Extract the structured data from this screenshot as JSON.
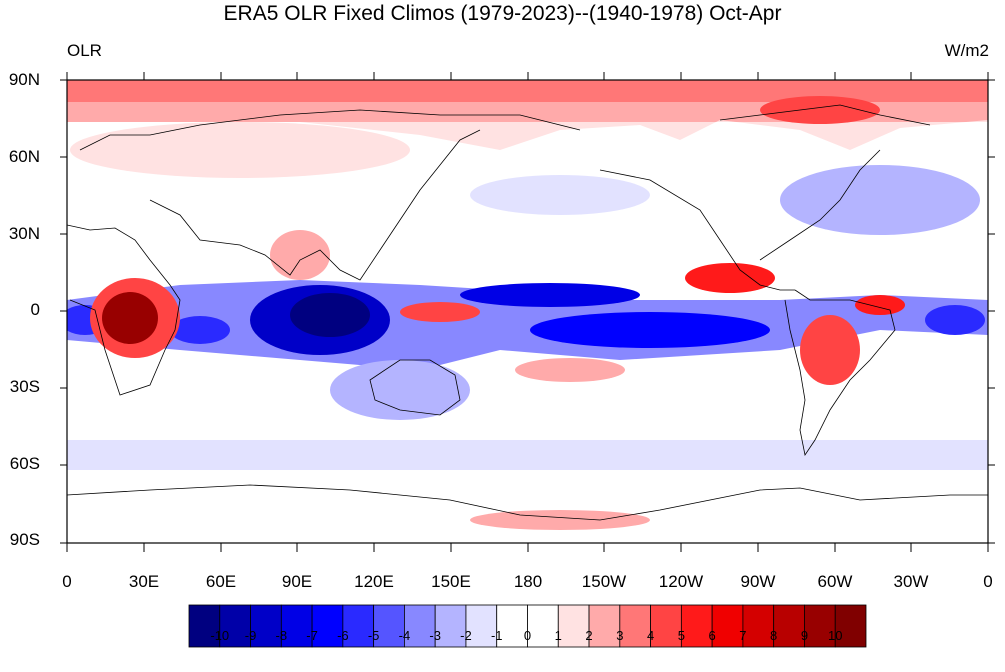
{
  "title": "ERA5 OLR Fixed Climos (1979-2023)--(1940-1978) Oct-Apr",
  "left_label": "OLR",
  "right_label": "W/m2",
  "lat_ticks": [
    "90N",
    "60N",
    "30N",
    "0",
    "30S",
    "60S",
    "90S"
  ],
  "lon_ticks": [
    "0",
    "30E",
    "60E",
    "90E",
    "120E",
    "150E",
    "180",
    "150W",
    "120W",
    "90W",
    "60W",
    "30W",
    "0"
  ],
  "colorbar": {
    "labels": [
      "-10",
      "-9",
      "-8",
      "-7",
      "-6",
      "-5",
      "-4",
      "-3",
      "-2",
      "-1",
      "0",
      "1",
      "2",
      "3",
      "4",
      "5",
      "6",
      "7",
      "8",
      "9",
      "10"
    ],
    "colors": [
      "#000080",
      "#0000a8",
      "#0000c8",
      "#0000e6",
      "#0000ff",
      "#2a2aff",
      "#5555ff",
      "#8888ff",
      "#b4b4ff",
      "#e2e2ff",
      "#ffffff",
      "#ffffff",
      "#ffe2e2",
      "#ffaaaa",
      "#ff7777",
      "#ff4444",
      "#ff1a1a",
      "#f00000",
      "#d40000",
      "#b80000",
      "#980000",
      "#800000"
    ]
  }
}
